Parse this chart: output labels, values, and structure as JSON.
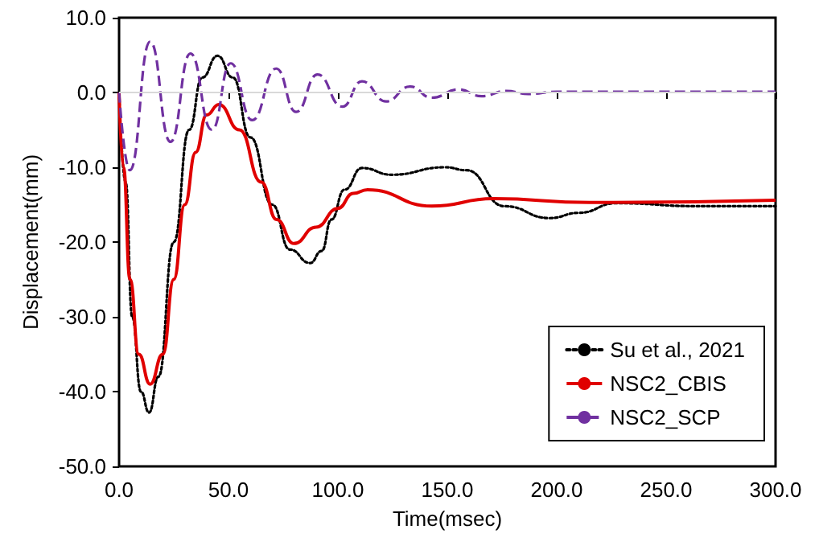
{
  "chart_data": {
    "type": "line",
    "xlabel": "Time(msec)",
    "ylabel": "Displacement(mm)",
    "xlim": [
      0,
      300
    ],
    "xticks": [
      {
        "value": 0,
        "label": "0.0"
      },
      {
        "value": 50,
        "label": "50.0"
      },
      {
        "value": 100,
        "label": "100.0"
      },
      {
        "value": 150,
        "label": "150.0"
      },
      {
        "value": 200,
        "label": "200.0"
      },
      {
        "value": 250,
        "label": "250.0"
      },
      {
        "value": 300,
        "label": "300.0"
      }
    ],
    "ylim": [
      -50,
      10
    ],
    "yticks": [
      {
        "value": -50,
        "label": "-50.0"
      },
      {
        "value": -40,
        "label": "-40.0"
      },
      {
        "value": -30,
        "label": "-30.0"
      },
      {
        "value": -20,
        "label": "-20.0"
      },
      {
        "value": -10,
        "label": "-10.0"
      },
      {
        "value": 0,
        "label": "0.0"
      },
      {
        "value": 10,
        "label": "10.0"
      }
    ],
    "grid": false,
    "legend": "bottom right",
    "marker": "none",
    "ref_lines": [
      {
        "axis": "y",
        "value": 0,
        "color": "#d9d9d9"
      }
    ],
    "series": [
      {
        "name": "Su et al., 2021",
        "color": "#000000",
        "line_style": "dotted",
        "x": [
          0,
          3,
          6,
          10,
          13.7,
          18,
          25,
          32,
          38,
          45,
          52,
          60,
          70,
          78,
          87.3,
          92.6,
          97,
          103,
          111,
          124.5,
          149,
          158.8,
          176,
          196.8,
          210,
          227.4,
          264,
          300
        ],
        "values": [
          0,
          -12,
          -30,
          -40,
          -42.8,
          -38,
          -20,
          -5,
          2,
          4.9,
          2,
          -6,
          -15,
          -21,
          -22.8,
          -21.2,
          -17,
          -13,
          -10.1,
          -11,
          -10,
          -10.4,
          -15.2,
          -16.8,
          -16.1,
          -14.8,
          -15.2,
          -15.2
        ]
      },
      {
        "name": "NSC2_CBIS",
        "color": "#e00000",
        "line_style": "solid",
        "x": [
          0,
          2,
          5,
          9,
          14.2,
          20,
          25,
          30,
          35,
          40,
          45.6,
          55,
          65,
          72,
          79.9,
          90,
          100,
          107,
          113.5,
          142.9,
          171,
          215,
          300
        ],
        "values": [
          0,
          -10,
          -25,
          -35,
          -39,
          -35,
          -25,
          -15,
          -8,
          -3,
          -1.6,
          -5,
          -12,
          -17,
          -20.2,
          -18,
          -15.5,
          -13.5,
          -13,
          -15.2,
          -14.2,
          -14.7,
          -14.4
        ]
      },
      {
        "name": "NSC2_SCP",
        "color": "#7030a0",
        "line_style": "dashed",
        "x": [
          0,
          4.9,
          14.2,
          23.5,
          32.6,
          42.4,
          51,
          60.8,
          71.8,
          80.9,
          90.7,
          102,
          111,
          122,
          133,
          142.9,
          155,
          165.7,
          177,
          187,
          200,
          250,
          300
        ],
        "values": [
          0,
          -10.4,
          6.8,
          -6.6,
          5.2,
          -5,
          3.9,
          -3.7,
          3.2,
          -2.6,
          2.4,
          -1.9,
          1.5,
          -1.2,
          0.8,
          -0.7,
          0.4,
          -0.5,
          0.2,
          -0.2,
          0.1,
          0.1,
          0.1
        ]
      }
    ]
  }
}
